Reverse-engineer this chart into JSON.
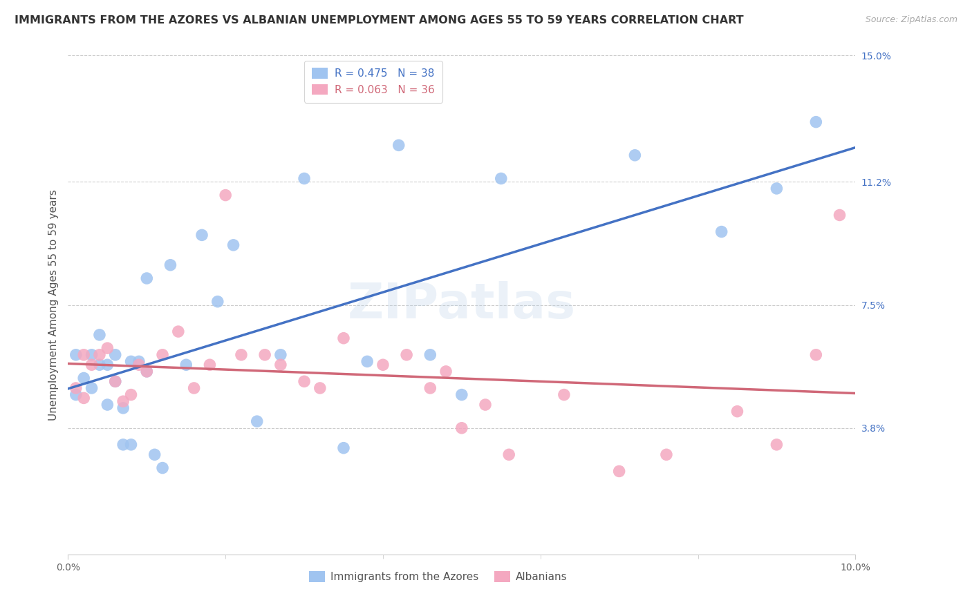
{
  "title": "IMMIGRANTS FROM THE AZORES VS ALBANIAN UNEMPLOYMENT AMONG AGES 55 TO 59 YEARS CORRELATION CHART",
  "source": "Source: ZipAtlas.com",
  "ylabel": "Unemployment Among Ages 55 to 59 years",
  "legend_label1": "Immigrants from the Azores",
  "legend_label2": "Albanians",
  "R1": 0.475,
  "N1": 38,
  "R2": 0.063,
  "N2": 36,
  "xlim": [
    0.0,
    0.1
  ],
  "ylim": [
    0.0,
    0.15
  ],
  "color_blue": "#a0c4f0",
  "color_pink": "#f4a8c0",
  "color_blue_line": "#4472C4",
  "color_pink_line": "#D06878",
  "color_blue_text": "#4472C4",
  "color_pink_text": "#D06878",
  "color_grid": "#cccccc",
  "watermark": "ZIPatlas",
  "title_fontsize": 11.5,
  "source_fontsize": 9,
  "tick_fontsize": 10,
  "label_fontsize": 11,
  "scatter_size": 160,
  "blue_x": [
    0.001,
    0.001,
    0.002,
    0.003,
    0.003,
    0.004,
    0.004,
    0.005,
    0.005,
    0.006,
    0.006,
    0.007,
    0.007,
    0.008,
    0.008,
    0.009,
    0.01,
    0.01,
    0.011,
    0.012,
    0.013,
    0.015,
    0.017,
    0.019,
    0.021,
    0.024,
    0.027,
    0.03,
    0.035,
    0.038,
    0.042,
    0.046,
    0.05,
    0.055,
    0.072,
    0.083,
    0.09,
    0.095
  ],
  "blue_y": [
    0.06,
    0.048,
    0.053,
    0.06,
    0.05,
    0.066,
    0.057,
    0.057,
    0.045,
    0.06,
    0.052,
    0.033,
    0.044,
    0.033,
    0.058,
    0.058,
    0.055,
    0.083,
    0.03,
    0.026,
    0.087,
    0.057,
    0.096,
    0.076,
    0.093,
    0.04,
    0.06,
    0.113,
    0.032,
    0.058,
    0.123,
    0.06,
    0.048,
    0.113,
    0.12,
    0.097,
    0.11,
    0.13
  ],
  "pink_x": [
    0.001,
    0.002,
    0.002,
    0.003,
    0.004,
    0.005,
    0.006,
    0.007,
    0.008,
    0.009,
    0.01,
    0.012,
    0.014,
    0.016,
    0.018,
    0.02,
    0.022,
    0.025,
    0.027,
    0.03,
    0.032,
    0.035,
    0.04,
    0.043,
    0.046,
    0.048,
    0.05,
    0.053,
    0.056,
    0.063,
    0.07,
    0.076,
    0.085,
    0.09,
    0.095,
    0.098
  ],
  "pink_y": [
    0.05,
    0.06,
    0.047,
    0.057,
    0.06,
    0.062,
    0.052,
    0.046,
    0.048,
    0.057,
    0.055,
    0.06,
    0.067,
    0.05,
    0.057,
    0.108,
    0.06,
    0.06,
    0.057,
    0.052,
    0.05,
    0.065,
    0.057,
    0.06,
    0.05,
    0.055,
    0.038,
    0.045,
    0.03,
    0.048,
    0.025,
    0.03,
    0.043,
    0.033,
    0.06,
    0.102
  ]
}
